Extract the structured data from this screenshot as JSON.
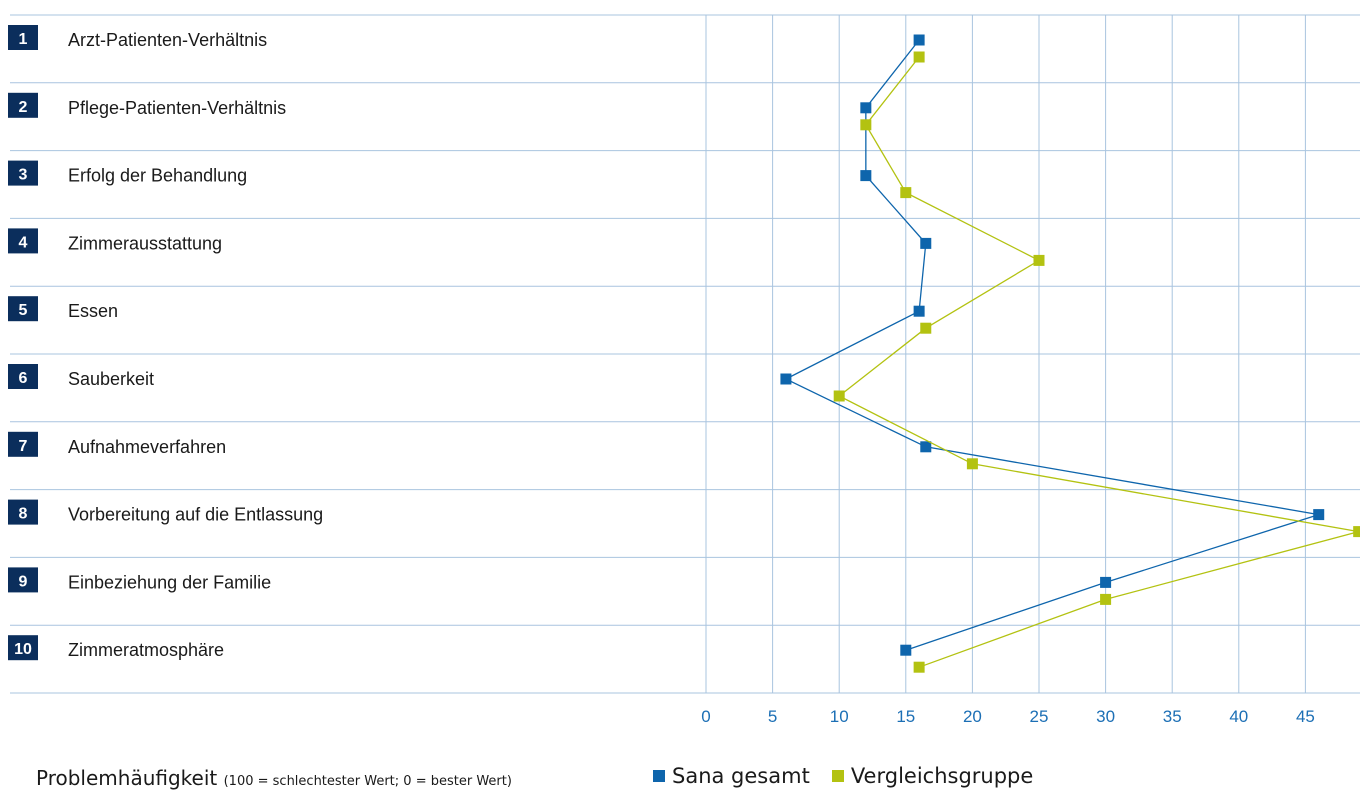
{
  "colors": {
    "sana": "#0e65ac",
    "vergleich": "#b3c211",
    "grid": "#a9c4df",
    "number_box": "#0b2e5c",
    "tick": "#1c6fb5"
  },
  "chart_data": {
    "type": "line",
    "orientation": "horizontal",
    "categories": [
      {
        "num": "1",
        "label": "Arzt-Patienten-Verhältnis"
      },
      {
        "num": "2",
        "label": "Pflege-Patienten-Verhältnis"
      },
      {
        "num": "3",
        "label": "Erfolg der Behandlung"
      },
      {
        "num": "4",
        "label": "Zimmerausstattung"
      },
      {
        "num": "5",
        "label": "Essen"
      },
      {
        "num": "6",
        "label": "Sauberkeit"
      },
      {
        "num": "7",
        "label": "Aufnahmeverfahren"
      },
      {
        "num": "8",
        "label": "Vorbereitung auf die Entlassung"
      },
      {
        "num": "9",
        "label": "Einbeziehung der Familie"
      },
      {
        "num": "10",
        "label": "Zimmeratmosphäre"
      }
    ],
    "x_ticks": [
      "0",
      "5",
      "10",
      "15",
      "20",
      "25",
      "30",
      "35",
      "40",
      "45"
    ],
    "xlim": [
      0,
      48.5
    ],
    "grid": true,
    "series": [
      {
        "name": "Sana gesamt",
        "color_key": "sana",
        "values": [
          16,
          12,
          12,
          16.5,
          16,
          6,
          16.5,
          46,
          30,
          15
        ]
      },
      {
        "name": "Vergleichsgruppe",
        "color_key": "vergleich",
        "values": [
          16,
          12,
          15,
          25,
          16.5,
          10,
          20,
          49,
          30,
          16
        ]
      }
    ],
    "xlabel": "Problemhäufigkeit",
    "xlabel_note": "(100 = schlechtester Wert; 0 = bester Wert)",
    "legend_position": "bottom-right"
  }
}
